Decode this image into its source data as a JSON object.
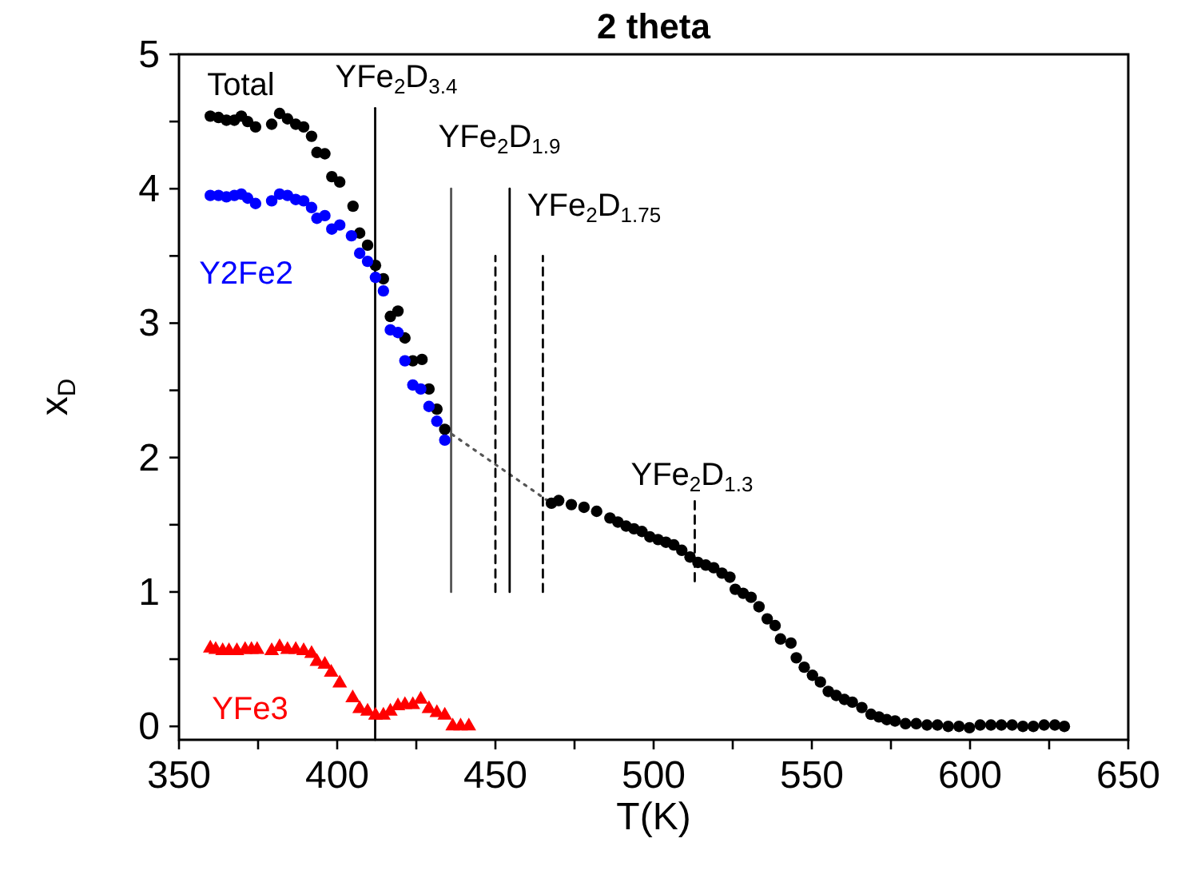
{
  "chart_data": {
    "type": "scatter",
    "title": "2 theta",
    "xlabel": "T(K)",
    "ylabel": "x$_{D}$",
    "xlim": [
      350,
      650
    ],
    "ylim": [
      -0.1,
      5
    ],
    "xticks": [
      350,
      {
        "value": 375,
        "label": null
      },
      400,
      {
        "value": 425,
        "label": null
      },
      450,
      {
        "value": 475,
        "label": null
      },
      500,
      {
        "value": 525,
        "label": null
      },
      550,
      {
        "value": 575,
        "label": null
      },
      600,
      {
        "value": 625,
        "label": null
      },
      650
    ],
    "yticks": [
      0,
      {
        "value": 0.5,
        "label": null
      },
      1,
      {
        "value": 1.5,
        "label": null
      },
      2,
      {
        "value": 2.5,
        "label": null
      },
      3,
      {
        "value": 3.5,
        "label": null
      },
      4,
      {
        "value": 4.5,
        "label": null
      },
      5
    ],
    "grid": false,
    "series": [
      {
        "name": "Total",
        "color": "#000000",
        "marker": "circle",
        "x": [
          359.9,
          362.5,
          365.0,
          367.5,
          369.7,
          371.7,
          374.2,
          379.3,
          381.8,
          384.3,
          386.9,
          389.4,
          391.9,
          393.6,
          396.1,
          398.3,
          400.8,
          405.0,
          407.1,
          409.6,
          412.1,
          414.6,
          416.8,
          419.2,
          421.4,
          423.9,
          426.8,
          429.0,
          431.5,
          434.0,
          467.7,
          470,
          474,
          478,
          482,
          486.2,
          488.7,
          491.3,
          493.8,
          496.3,
          498.8,
          501.4,
          503.9,
          506.4,
          508.9,
          511.5,
          514.0,
          516.5,
          519.0,
          521.6,
          524.1,
          525.8,
          528.3,
          530.8,
          533.3,
          535.9,
          538.4,
          540.1,
          543.4,
          545.1,
          547.6,
          550.2,
          552.7,
          555.2,
          557.7,
          560.3,
          562.8,
          565.8,
          568.7,
          571.2,
          573.7,
          576.3,
          579.6,
          583.0,
          586.4,
          589.7,
          593.1,
          596.5,
          599.8,
          603.2,
          606.6,
          609.9,
          613.3,
          616.7,
          620.0,
          623.4,
          626.8,
          629.8
        ],
        "values": [
          4.54,
          4.53,
          4.51,
          4.51,
          4.54,
          4.5,
          4.46,
          4.48,
          4.56,
          4.52,
          4.48,
          4.46,
          4.39,
          4.27,
          4.26,
          4.09,
          4.05,
          3.87,
          3.67,
          3.58,
          3.43,
          3.33,
          3.05,
          3.09,
          2.89,
          2.72,
          2.73,
          2.51,
          2.36,
          2.21,
          1.66,
          1.68,
          1.65,
          1.63,
          1.6,
          1.55,
          1.52,
          1.49,
          1.47,
          1.45,
          1.41,
          1.39,
          1.37,
          1.35,
          1.31,
          1.26,
          1.22,
          1.2,
          1.18,
          1.14,
          1.11,
          1.02,
          0.99,
          0.96,
          0.89,
          0.8,
          0.75,
          0.65,
          0.62,
          0.51,
          0.44,
          0.38,
          0.33,
          0.26,
          0.23,
          0.2,
          0.18,
          0.14,
          0.09,
          0.07,
          0.05,
          0.04,
          0.02,
          0.02,
          0.01,
          0.01,
          0.0,
          0.0,
          -0.01,
          0.01,
          0.01,
          0.01,
          0.01,
          0.0,
          0.0,
          0.01,
          0.01,
          0.0
        ]
      },
      {
        "name": "Y2Fe2",
        "color": "#0000ff",
        "marker": "circle",
        "x": [
          359.9,
          362.5,
          365.0,
          367.5,
          369.7,
          371.7,
          374.2,
          379.3,
          381.8,
          384.3,
          386.9,
          389.4,
          391.9,
          393.6,
          396.1,
          398.3,
          400.8,
          404.5,
          407.1,
          409.6,
          412.1,
          414.6,
          416.8,
          419.2,
          421.4,
          423.9,
          426.4,
          429.0,
          431.5,
          434.0
        ],
        "values": [
          3.95,
          3.95,
          3.94,
          3.95,
          3.96,
          3.93,
          3.89,
          3.91,
          3.96,
          3.95,
          3.92,
          3.91,
          3.86,
          3.78,
          3.8,
          3.7,
          3.73,
          3.65,
          3.52,
          3.46,
          3.34,
          3.24,
          2.95,
          2.93,
          2.72,
          2.54,
          2.51,
          2.38,
          2.27,
          2.13
        ]
      },
      {
        "name": "YFe3",
        "color": "#ff0000",
        "marker": "triangle",
        "x": [
          359.9,
          361.6,
          363.8,
          365.8,
          368.3,
          370.9,
          372.9,
          374.7,
          379.3,
          381.8,
          384.3,
          386.9,
          389.4,
          391.9,
          393.6,
          396.1,
          398.1,
          400.8,
          404.9,
          407.1,
          409.6,
          412.1,
          414.6,
          416.8,
          419.2,
          421.4,
          423.9,
          426.4,
          429.0,
          431.5,
          434.0,
          436.5,
          439.0,
          441.6
        ],
        "values": [
          0.59,
          0.58,
          0.57,
          0.57,
          0.57,
          0.58,
          0.58,
          0.58,
          0.57,
          0.6,
          0.58,
          0.58,
          0.57,
          0.55,
          0.49,
          0.47,
          0.41,
          0.33,
          0.22,
          0.14,
          0.12,
          0.09,
          0.09,
          0.12,
          0.16,
          0.17,
          0.17,
          0.21,
          0.14,
          0.11,
          0.09,
          0.01,
          0.01,
          0.01
        ]
      },
      {
        "type": "line",
        "color": "#555555",
        "line_style": "dotted",
        "x": [
          434.0,
          467.7
        ],
        "values": [
          2.21,
          1.66
        ]
      },
      {
        "type": "line",
        "color": "#000000",
        "line_style": "solid",
        "x": [
          412,
          412
        ],
        "values": [
          -0.1,
          4.6
        ]
      },
      {
        "type": "line",
        "color": "#555555",
        "line_style": "solid",
        "x": [
          436,
          436
        ],
        "values": [
          1,
          4
        ]
      },
      {
        "type": "line",
        "color": "#000000",
        "line_style": "dashed",
        "x": [
          450,
          450
        ],
        "values": [
          1,
          3.5
        ]
      },
      {
        "type": "line",
        "color": "#000000",
        "line_style": "solid",
        "x": [
          454.5,
          454.5
        ],
        "values": [
          1,
          4
        ]
      },
      {
        "type": "line",
        "color": "#000000",
        "line_style": "dashed",
        "x": [
          465,
          465
        ],
        "values": [
          1,
          3.5
        ]
      },
      {
        "type": "line",
        "color": "#000000",
        "line_style": "dashed",
        "x": [
          513,
          513
        ],
        "values": [
          1.08,
          1.7
        ]
      }
    ],
    "annotations": [
      {
        "text": "YFe$_{2}$D$_{3.4}$",
        "x": 412,
        "y": 4.6
      },
      {
        "text": "YFe$_{2}$D$_{1.9}$",
        "x": 436,
        "y": 4
      },
      {
        "text": "YFe$_{2}$D$_{1.75}$",
        "x": 454.5,
        "y": 4
      },
      {
        "text": "YFe$_{2}$D$_{1.3}$",
        "x": 513,
        "y": 1.7
      }
    ]
  }
}
